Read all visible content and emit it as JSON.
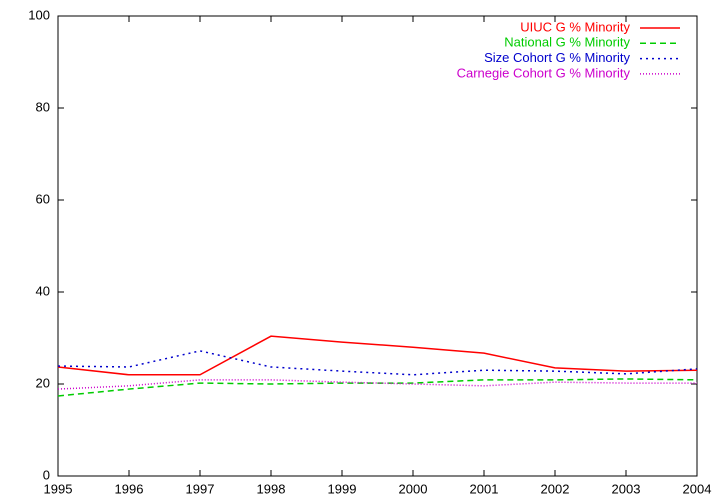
{
  "chart_data": {
    "type": "line",
    "x": [
      1995,
      1996,
      1997,
      1998,
      1999,
      2000,
      2001,
      2002,
      2003,
      2004
    ],
    "series": [
      {
        "name": "UIUC G % Minority",
        "color": "#ff0000",
        "line_style": "solid",
        "values": [
          23.7,
          22.0,
          22.0,
          30.4,
          29.1,
          28.0,
          26.7,
          23.5,
          22.8,
          23.0
        ]
      },
      {
        "name": "National G % Minority",
        "color": "#00cc00",
        "line_style": "dashed",
        "values": [
          17.4,
          18.9,
          20.2,
          20.0,
          20.2,
          20.2,
          20.9,
          20.9,
          21.1,
          20.9
        ]
      },
      {
        "name": "Size Cohort G % Minority",
        "color": "#0000cc",
        "line_style": "dotted",
        "values": [
          23.9,
          23.7,
          27.2,
          23.7,
          22.8,
          22.0,
          23.0,
          22.8,
          22.2,
          23.3
        ]
      },
      {
        "name": "Carnegie Cohort G % Minority",
        "color": "#cc00cc",
        "line_style": "fine-dotted",
        "values": [
          18.9,
          19.6,
          20.9,
          20.9,
          20.4,
          20.0,
          19.6,
          20.4,
          20.2,
          20.2
        ]
      }
    ],
    "xlim": [
      1995,
      2004
    ],
    "xticks": [
      1995,
      1996,
      1997,
      1998,
      1999,
      2000,
      2001,
      2002,
      2003,
      2004
    ],
    "ylim": [
      0,
      100
    ],
    "yticks": [
      0,
      20,
      40,
      60,
      80,
      100
    ],
    "grid": false,
    "legend": "top-right"
  }
}
